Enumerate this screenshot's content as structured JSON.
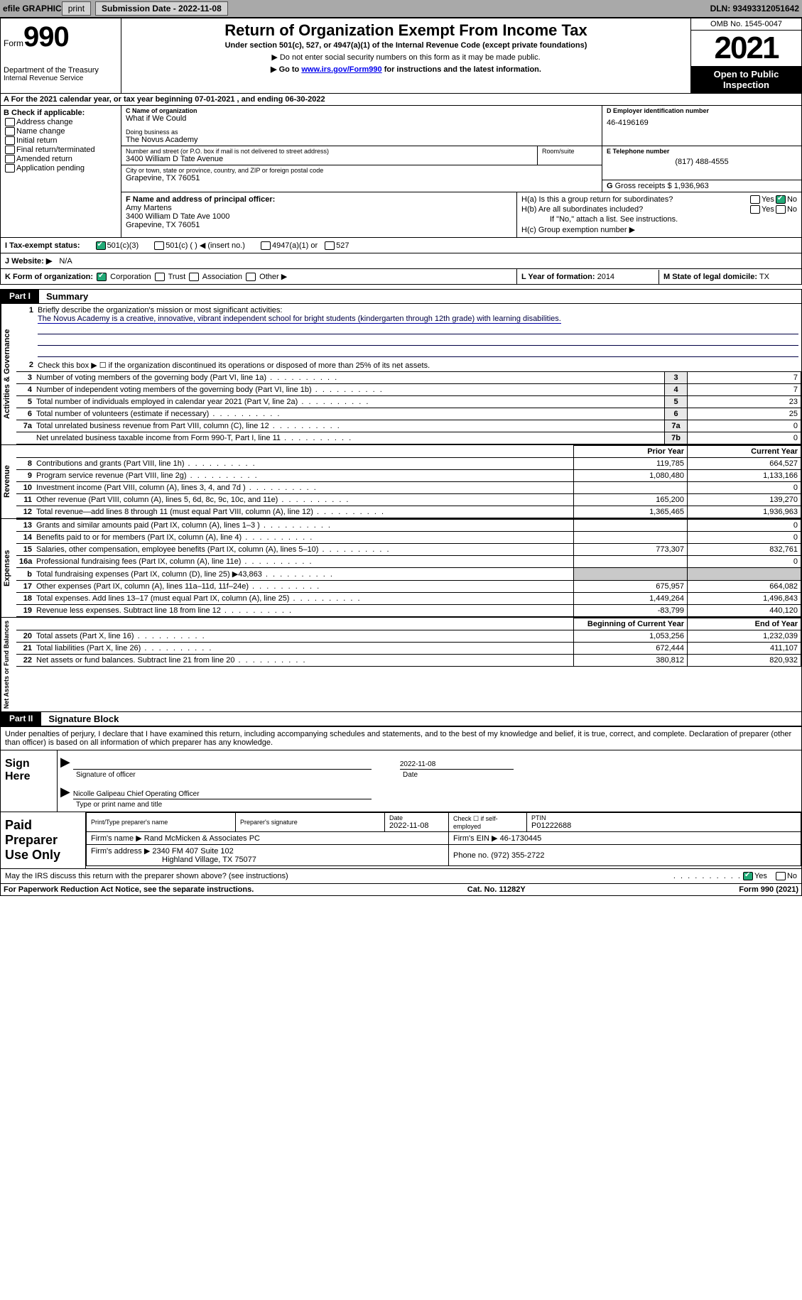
{
  "topbar": {
    "efile": "efile GRAPHIC",
    "print": "print",
    "submission": "Submission Date - 2022-11-08",
    "dln": "DLN: 93493312051642"
  },
  "header": {
    "form_label": "Form",
    "form_number": "990",
    "dept": "Department of the Treasury",
    "irs": "Internal Revenue Service",
    "title": "Return of Organization Exempt From Income Tax",
    "sub1": "Under section 501(c), 527, or 4947(a)(1) of the Internal Revenue Code (except private foundations)",
    "sub2": "▶ Do not enter social security numbers on this form as it may be made public.",
    "sub3_pre": "▶ Go to ",
    "sub3_link": "www.irs.gov/Form990",
    "sub3_post": " for instructions and the latest information.",
    "omb": "OMB No. 1545-0047",
    "year": "2021",
    "inspect": "Open to Public Inspection"
  },
  "section_a": "A For the 2021 calendar year, or tax year beginning 07-01-2021   , and ending 06-30-2022",
  "b": {
    "label": "B Check if applicable:",
    "items": [
      "Address change",
      "Name change",
      "Initial return",
      "Final return/terminated",
      "Amended return",
      "Application pending"
    ]
  },
  "c": {
    "label": "C Name of organization",
    "name": "What if We Could",
    "dba_label": "Doing business as",
    "dba": "The Novus Academy",
    "street_label": "Number and street (or P.O. box if mail is not delivered to street address)",
    "street": "3400 William D Tate Avenue",
    "room_label": "Room/suite",
    "city_label": "City or town, state or province, country, and ZIP or foreign postal code",
    "city": "Grapevine, TX  76051"
  },
  "d": {
    "label": "D Employer identification number",
    "value": "46-4196169"
  },
  "e": {
    "label": "E Telephone number",
    "value": "(817) 488-4555"
  },
  "g": {
    "label": "G",
    "text": "Gross receipts $",
    "value": "1,936,963"
  },
  "f": {
    "label": "F Name and address of principal officer:",
    "name": "Amy Martens",
    "addr1": "3400 William D Tate Ave 1000",
    "addr2": "Grapevine, TX  76051"
  },
  "h": {
    "a": "H(a)  Is this a group return for subordinates?",
    "b": "H(b)  Are all subordinates included?",
    "b_note": "If \"No,\" attach a list. See instructions.",
    "c": "H(c)  Group exemption number ▶",
    "yes": "Yes",
    "no": "No"
  },
  "i": {
    "label": "I    Tax-exempt status:",
    "opt1": "501(c)(3)",
    "opt2": "501(c) (   ) ◀ (insert no.)",
    "opt3": "4947(a)(1) or",
    "opt4": "527"
  },
  "j": {
    "label": "J    Website: ▶",
    "value": "N/A"
  },
  "k": {
    "label": "K Form of organization:",
    "opts": [
      "Corporation",
      "Trust",
      "Association",
      "Other ▶"
    ]
  },
  "l": {
    "label": "L Year of formation:",
    "value": "2014"
  },
  "m": {
    "label": "M State of legal domicile:",
    "value": "TX"
  },
  "part1": {
    "header_num": "Part I",
    "header_title": "Summary",
    "line1_label": "1",
    "line1_text": "Briefly describe the organization's mission or most significant activities:",
    "line1_value": "The Novus Academy is a creative, innovative, vibrant independent school for bright students (kindergarten through 12th grade) with learning disabilities.",
    "line2": "Check this box ▶ ☐  if the organization discontinued its operations or disposed of more than 25% of its net assets.",
    "tab_ag": "Activities & Governance",
    "tab_rev": "Revenue",
    "tab_exp": "Expenses",
    "tab_na": "Net Assets or Fund Balances",
    "col_prior": "Prior Year",
    "col_curr": "Current Year",
    "col_boy": "Beginning of Current Year",
    "col_eoy": "End of Year"
  },
  "lines_ag": [
    {
      "n": "3",
      "t": "Number of voting members of the governing body (Part VI, line 1a)",
      "c": "3",
      "v": "7"
    },
    {
      "n": "4",
      "t": "Number of independent voting members of the governing body (Part VI, line 1b)",
      "c": "4",
      "v": "7"
    },
    {
      "n": "5",
      "t": "Total number of individuals employed in calendar year 2021 (Part V, line 2a)",
      "c": "5",
      "v": "23"
    },
    {
      "n": "6",
      "t": "Total number of volunteers (estimate if necessary)",
      "c": "6",
      "v": "25"
    },
    {
      "n": "7a",
      "t": "Total unrelated business revenue from Part VIII, column (C), line 12",
      "c": "7a",
      "v": "0"
    },
    {
      "n": "",
      "t": "Net unrelated business taxable income from Form 990-T, Part I, line 11",
      "c": "7b",
      "v": "0"
    }
  ],
  "lines_rev": [
    {
      "n": "8",
      "t": "Contributions and grants (Part VIII, line 1h)",
      "p": "119,785",
      "c": "664,527"
    },
    {
      "n": "9",
      "t": "Program service revenue (Part VIII, line 2g)",
      "p": "1,080,480",
      "c": "1,133,166"
    },
    {
      "n": "10",
      "t": "Investment income (Part VIII, column (A), lines 3, 4, and 7d )",
      "p": "",
      "c": "0"
    },
    {
      "n": "11",
      "t": "Other revenue (Part VIII, column (A), lines 5, 6d, 8c, 9c, 10c, and 11e)",
      "p": "165,200",
      "c": "139,270"
    },
    {
      "n": "12",
      "t": "Total revenue—add lines 8 through 11 (must equal Part VIII, column (A), line 12)",
      "p": "1,365,465",
      "c": "1,936,963"
    }
  ],
  "lines_exp": [
    {
      "n": "13",
      "t": "Grants and similar amounts paid (Part IX, column (A), lines 1–3 )",
      "p": "",
      "c": "0"
    },
    {
      "n": "14",
      "t": "Benefits paid to or for members (Part IX, column (A), line 4)",
      "p": "",
      "c": "0"
    },
    {
      "n": "15",
      "t": "Salaries, other compensation, employee benefits (Part IX, column (A), lines 5–10)",
      "p": "773,307",
      "c": "832,761"
    },
    {
      "n": "16a",
      "t": "Professional fundraising fees (Part IX, column (A), line 11e)",
      "p": "",
      "c": "0"
    },
    {
      "n": "b",
      "t": "Total fundraising expenses (Part IX, column (D), line 25) ▶43,863",
      "p": "SHADE",
      "c": "SHADE"
    },
    {
      "n": "17",
      "t": "Other expenses (Part IX, column (A), lines 11a–11d, 11f–24e)",
      "p": "675,957",
      "c": "664,082"
    },
    {
      "n": "18",
      "t": "Total expenses. Add lines 13–17 (must equal Part IX, column (A), line 25)",
      "p": "1,449,264",
      "c": "1,496,843"
    },
    {
      "n": "19",
      "t": "Revenue less expenses. Subtract line 18 from line 12",
      "p": "-83,799",
      "c": "440,120"
    }
  ],
  "lines_na": [
    {
      "n": "20",
      "t": "Total assets (Part X, line 16)",
      "p": "1,053,256",
      "c": "1,232,039"
    },
    {
      "n": "21",
      "t": "Total liabilities (Part X, line 26)",
      "p": "672,444",
      "c": "411,107"
    },
    {
      "n": "22",
      "t": "Net assets or fund balances. Subtract line 21 from line 20",
      "p": "380,812",
      "c": "820,932"
    }
  ],
  "part2": {
    "header_num": "Part II",
    "header_title": "Signature Block",
    "intro": "Under penalties of perjury, I declare that I have examined this return, including accompanying schedules and statements, and to the best of my knowledge and belief, it is true, correct, and complete. Declaration of preparer (other than officer) is based on all information of which preparer has any knowledge.",
    "sign_here": "Sign Here",
    "sig_officer": "Signature of officer",
    "sig_date_val": "2022-11-08",
    "sig_date": "Date",
    "sig_name": "Nicolle Galipeau  Chief Operating Officer",
    "sig_name_label": "Type or print name and title"
  },
  "paid": {
    "label": "Paid Preparer Use Only",
    "r1c1_lbl": "Print/Type preparer's name",
    "r1c1": "",
    "r1c2_lbl": "Preparer's signature",
    "r1c2": "",
    "r1c3_lbl": "Date",
    "r1c3": "2022-11-08",
    "r1c4_lbl": "Check ☐ if self-employed",
    "r1c5_lbl": "PTIN",
    "r1c5": "P01222688",
    "r2_lbl": "Firm's name    ▶",
    "r2": "Rand McMicken & Associates PC",
    "r2b_lbl": "Firm's EIN ▶",
    "r2b": "46-1730445",
    "r3_lbl": "Firm's address ▶",
    "r3a": "2340 FM 407 Suite 102",
    "r3b": "Highland Village, TX  75077",
    "r3c_lbl": "Phone no.",
    "r3c": "(972) 355-2722"
  },
  "discuss": {
    "text": "May the IRS discuss this return with the preparer shown above? (see instructions)",
    "yes": "Yes",
    "no": "No"
  },
  "footer": {
    "left": "For Paperwork Reduction Act Notice, see the separate instructions.",
    "mid": "Cat. No. 11282Y",
    "right": "Form 990 (2021)"
  }
}
